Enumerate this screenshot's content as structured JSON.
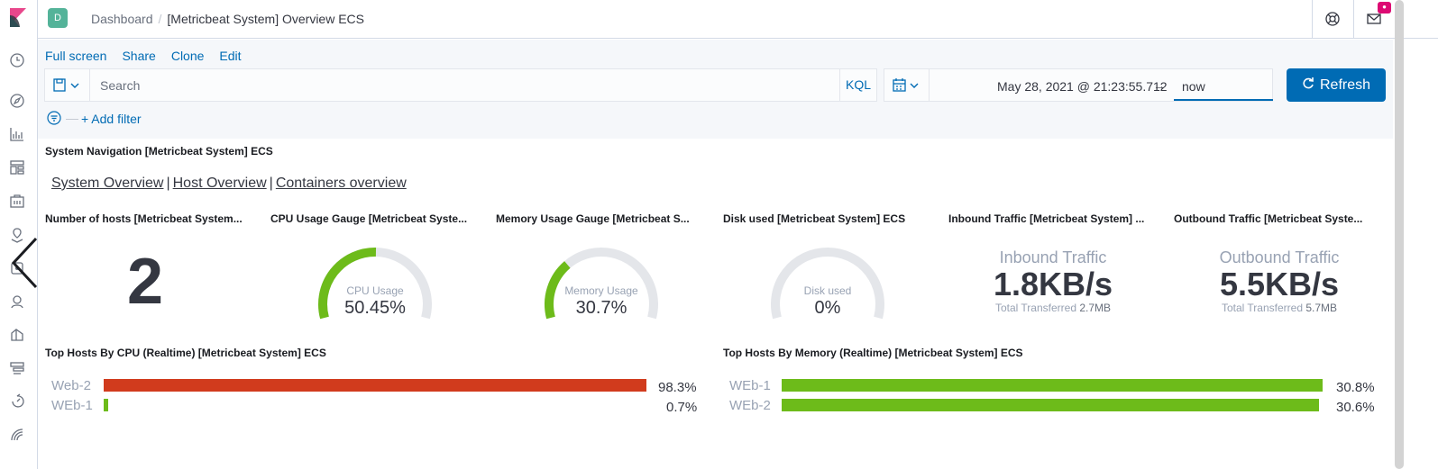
{
  "header": {
    "space_initial": "D",
    "breadcrumb_root": "Dashboard",
    "breadcrumb_separator": "/",
    "breadcrumb_current": "[Metricbeat System] Overview ECS"
  },
  "actions": {
    "full_screen": "Full screen",
    "share": "Share",
    "clone": "Clone",
    "edit": "Edit"
  },
  "search": {
    "placeholder": "Search",
    "language": "KQL"
  },
  "date": {
    "start": "May 28, 2021 @ 21:23:55.712",
    "arrow": "→",
    "end": "now"
  },
  "refresh_label": "Refresh",
  "filters": {
    "dash": "—",
    "add_filter": "+ Add filter"
  },
  "nav_panel": {
    "title": "System Navigation [Metricbeat System] ECS",
    "links": [
      "System Overview",
      "Host Overview",
      "Containers overview"
    ],
    "divider": "|"
  },
  "hosts": {
    "title": "Number of hosts [Metricbeat System...",
    "value": "2"
  },
  "gauges": [
    {
      "title": "CPU Usage Gauge [Metricbeat Syste...",
      "label": "CPU Usage",
      "value": "50.45%",
      "fraction": 0.5045,
      "color": "#6dbb1a"
    },
    {
      "title": "Memory Usage Gauge [Metricbeat S...",
      "label": "Memory Usage",
      "value": "30.7%",
      "fraction": 0.307,
      "color": "#6dbb1a"
    },
    {
      "title": "Disk used [Metricbeat System] ECS",
      "label": "Disk used",
      "value": "0%",
      "fraction": 0,
      "color": "#6dbb1a"
    }
  ],
  "traffic": [
    {
      "title": "Inbound Traffic [Metricbeat System] ...",
      "label": "Inbound Traffic",
      "value": "1.8KB/s",
      "sub_label": "Total Transferred",
      "sub_value": "2.7MB"
    },
    {
      "title": "Outbound Traffic [Metricbeat Syste...",
      "label": "Outbound Traffic",
      "value": "5.5KB/s",
      "sub_label": "Total Transferred",
      "sub_value": "5.7MB"
    }
  ],
  "cpu_top": {
    "title": "Top Hosts By CPU (Realtime) [Metricbeat System] ECS",
    "rows": [
      {
        "host": "Web-2",
        "value": "98.3%",
        "fraction": 0.983,
        "color": "#d13b1d"
      },
      {
        "host": "WEb-1",
        "value": "0.7%",
        "fraction": 0.007,
        "color": "#6dbb1a"
      }
    ]
  },
  "mem_top": {
    "title": "Top Hosts By Memory (Realtime) [Metricbeat System] ECS",
    "rows": [
      {
        "host": "WEb-1",
        "value": "30.8%",
        "fraction": 0.308,
        "color": "#6dbb1a"
      },
      {
        "host": "WEb-2",
        "value": "30.6%",
        "fraction": 0.306,
        "color": "#6dbb1a"
      }
    ]
  }
}
